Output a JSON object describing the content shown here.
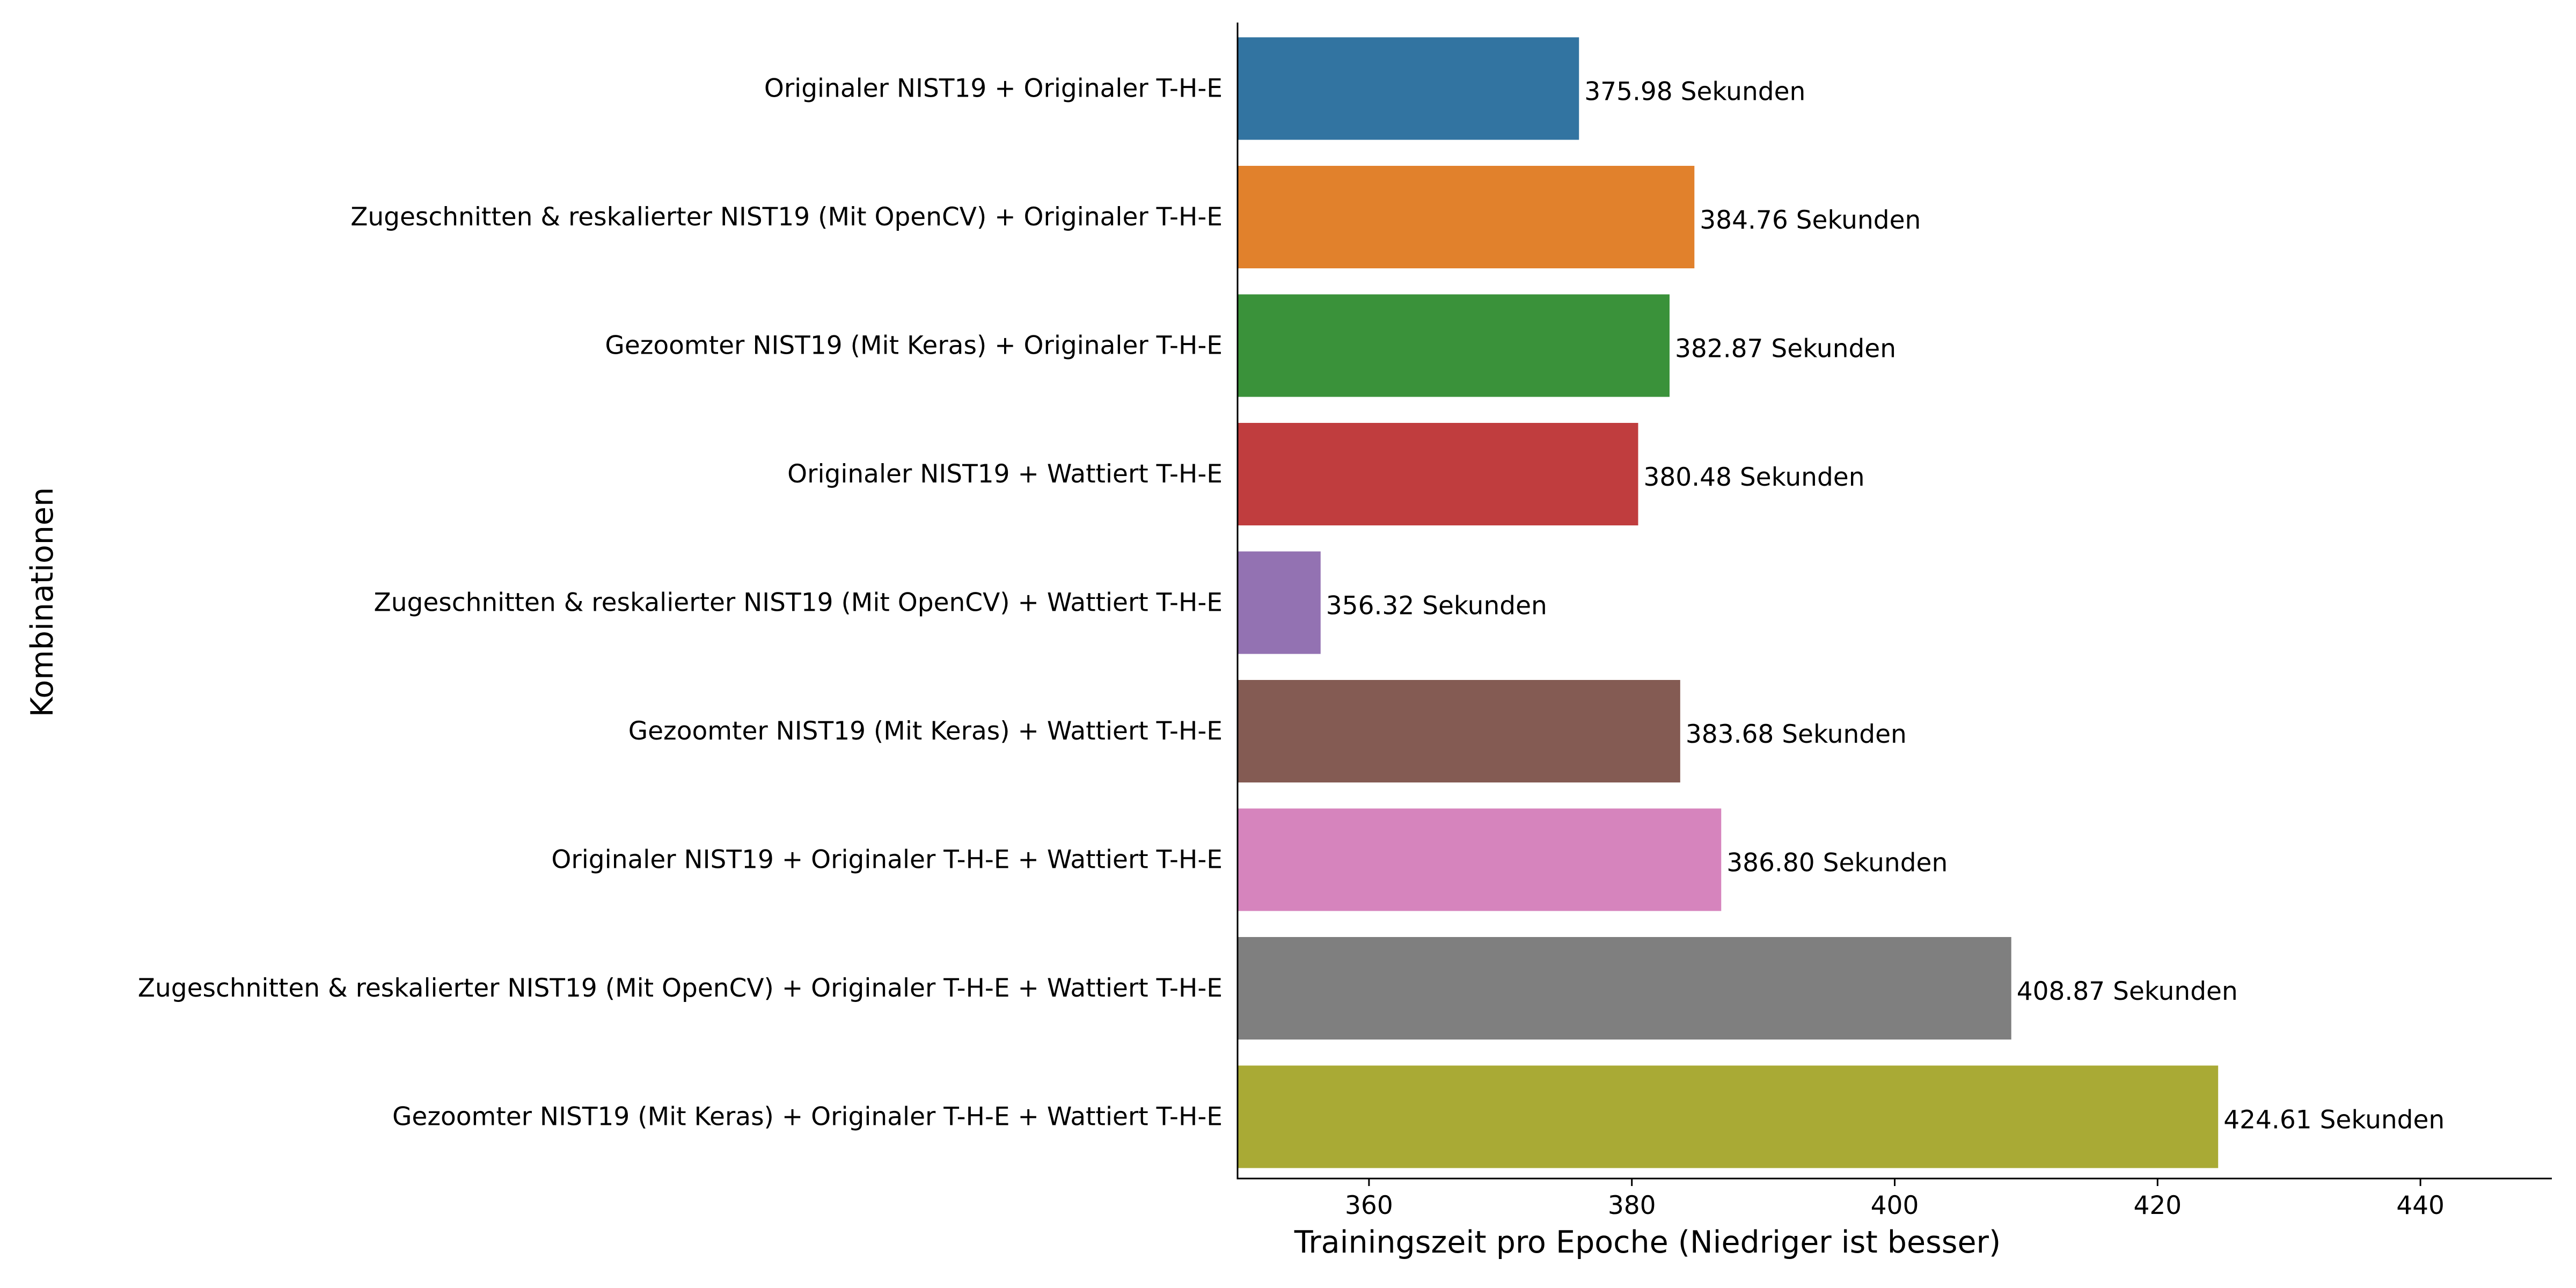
{
  "chart_data": {
    "type": "bar",
    "orientation": "horizontal",
    "title": "",
    "xlabel": "Trainingszeit pro Epoche (Niedriger ist besser)",
    "ylabel": "Kombinationen",
    "xlim": [
      350,
      450
    ],
    "xticks": [
      360,
      380,
      400,
      420,
      440
    ],
    "grid": false,
    "categories": [
      "Originaler NIST19 + Originaler T-H-E",
      "Zugeschnitten & reskalierter NIST19 (Mit OpenCV) + Originaler T-H-E",
      "Gezoomter NIST19 (Mit Keras) + Originaler T-H-E",
      "Originaler NIST19 + Wattiert T-H-E",
      "Zugeschnitten & reskalierter NIST19 (Mit OpenCV) + Wattiert T-H-E",
      "Gezoomter NIST19 (Mit Keras) + Wattiert T-H-E",
      "Originaler NIST19 + Originaler T-H-E + Wattiert T-H-E",
      "Zugeschnitten & reskalierter NIST19 (Mit OpenCV) + Originaler T-H-E + Wattiert T-H-E",
      "Gezoomter NIST19 (Mit Keras) + Originaler T-H-E + Wattiert T-H-E"
    ],
    "values": [
      375.98,
      384.76,
      382.87,
      380.48,
      356.32,
      383.68,
      386.8,
      408.87,
      424.61
    ],
    "value_labels": [
      "375.98 Sekunden",
      "384.76 Sekunden",
      "382.87 Sekunden",
      "380.48 Sekunden",
      "356.32 Sekunden",
      "383.68 Sekunden",
      "386.80 Sekunden",
      "408.87 Sekunden",
      "424.61 Sekunden"
    ],
    "colors": [
      "#3274a1",
      "#e1812c",
      "#3a923a",
      "#c03d3e",
      "#9372b2",
      "#845b53",
      "#d684bd",
      "#7f7f7f",
      "#a9aa35"
    ]
  }
}
